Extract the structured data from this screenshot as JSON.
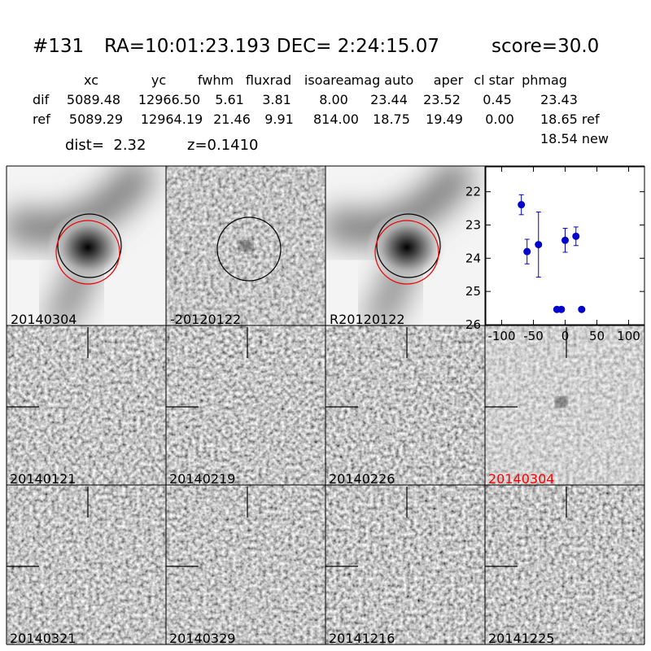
{
  "header": {
    "id": "#131",
    "coords": "RA=10:01:23.193 DEC= 2:24:15.07",
    "score": "score=30.0"
  },
  "table": {
    "columns": [
      "xc",
      "yc",
      "fwhm",
      "fluxrad",
      "isoarea",
      "mag auto",
      "aper",
      "cl star",
      "phmag"
    ],
    "rows": [
      {
        "label": "dif",
        "cells": [
          "5089.48",
          "12966.50",
          "5.61",
          "3.81",
          "8.00",
          "23.44",
          "23.52",
          "0.45",
          "23.43"
        ]
      },
      {
        "label": "ref",
        "cells": [
          "5089.29",
          "12964.19",
          "21.46",
          "9.91",
          "814.00",
          "18.75",
          "19.49",
          "0.00",
          "18.65 ref"
        ]
      }
    ],
    "extra": "18.54 new",
    "dist": "dist=  2.32",
    "z": "z=0.1410"
  },
  "stamps": {
    "top": [
      "20140304",
      "-20120122",
      "R20120122"
    ],
    "epochs": [
      {
        "label": "20140121",
        "color": "#000000"
      },
      {
        "label": "20140219",
        "color": "#000000"
      },
      {
        "label": "20140226",
        "color": "#000000"
      },
      {
        "label": "20140304",
        "color": "#ff0000"
      },
      {
        "label": "20140321",
        "color": "#000000"
      },
      {
        "label": "20140329",
        "color": "#000000"
      },
      {
        "label": "20141216",
        "color": "#000000"
      },
      {
        "label": "20141225",
        "color": "#000000"
      }
    ]
  },
  "chart_data": {
    "type": "scatter",
    "x": [
      -69,
      -60,
      -42,
      0,
      17,
      -13,
      -6,
      26
    ],
    "values": [
      22.39,
      23.8,
      23.59,
      23.46,
      23.34,
      25.54,
      25.54,
      25.54
    ],
    "errors": [
      0.3,
      0.37,
      0.98,
      0.36,
      0.28,
      null,
      null,
      null
    ],
    "color": "#0000cc",
    "xlim": [
      -125,
      125
    ],
    "ylim": [
      26,
      21.25
    ],
    "xticks": [
      -100,
      -50,
      0,
      50,
      100
    ],
    "yticks": [
      22,
      23,
      24,
      25,
      26
    ]
  }
}
